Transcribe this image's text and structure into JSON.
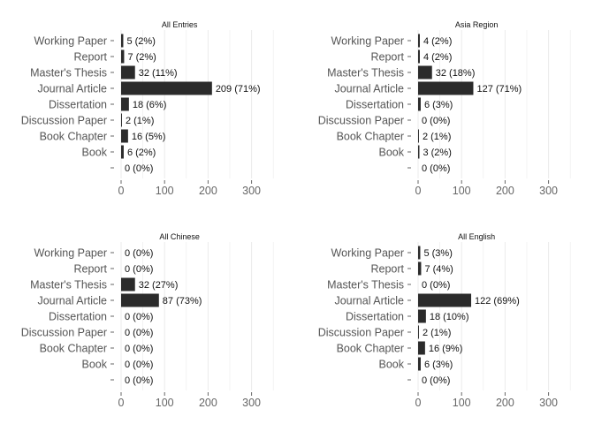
{
  "chart_data": [
    {
      "type": "bar",
      "orientation": "horizontal",
      "title": "All Entries",
      "categories": [
        "Working Paper",
        "Report",
        "Master's Thesis",
        "Journal Article",
        "Dissertation",
        "Discussion Paper",
        "Book Chapter",
        "Book",
        ""
      ],
      "values": [
        5,
        7,
        32,
        209,
        18,
        2,
        16,
        6,
        0
      ],
      "labels": [
        "5 (2%)",
        "7 (2%)",
        "32 (11%)",
        "209 (71%)",
        "18 (6%)",
        "2 (1%)",
        "16 (5%)",
        "6 (2%)",
        "0 (0%)"
      ],
      "xlim": [
        0,
        350
      ],
      "xticks": [
        0,
        100,
        200,
        300
      ],
      "grid": true,
      "bar_color": "#2b2b2b"
    },
    {
      "type": "bar",
      "orientation": "horizontal",
      "title": "Asia Region",
      "categories": [
        "Working Paper",
        "Report",
        "Master's Thesis",
        "Journal Article",
        "Dissertation",
        "Discussion Paper",
        "Book Chapter",
        "Book",
        ""
      ],
      "values": [
        4,
        4,
        32,
        127,
        6,
        0,
        2,
        3,
        0
      ],
      "labels": [
        "4 (2%)",
        "4 (2%)",
        "32 (18%)",
        "127 (71%)",
        "6 (3%)",
        "0 (0%)",
        "2 (1%)",
        "3 (2%)",
        "0 (0%)"
      ],
      "xlim": [
        0,
        350
      ],
      "xticks": [
        0,
        100,
        200,
        300
      ],
      "grid": true,
      "bar_color": "#2b2b2b"
    },
    {
      "type": "bar",
      "orientation": "horizontal",
      "title": "All Chinese",
      "categories": [
        "Working Paper",
        "Report",
        "Master's Thesis",
        "Journal Article",
        "Dissertation",
        "Discussion Paper",
        "Book Chapter",
        "Book",
        ""
      ],
      "values": [
        0,
        0,
        32,
        87,
        0,
        0,
        0,
        0,
        0
      ],
      "labels": [
        "0 (0%)",
        "0 (0%)",
        "32 (27%)",
        "87 (73%)",
        "0 (0%)",
        "0 (0%)",
        "0 (0%)",
        "0 (0%)",
        "0 (0%)"
      ],
      "xlim": [
        0,
        350
      ],
      "xticks": [
        0,
        100,
        200,
        300
      ],
      "grid": true,
      "bar_color": "#2b2b2b"
    },
    {
      "type": "bar",
      "orientation": "horizontal",
      "title": "All English",
      "categories": [
        "Working Paper",
        "Report",
        "Master's Thesis",
        "Journal Article",
        "Dissertation",
        "Discussion Paper",
        "Book Chapter",
        "Book",
        ""
      ],
      "values": [
        5,
        7,
        0,
        122,
        18,
        2,
        16,
        6,
        0
      ],
      "labels": [
        "5 (3%)",
        "7 (4%)",
        "0 (0%)",
        "122 (69%)",
        "18 (10%)",
        "2 (1%)",
        "16 (9%)",
        "6 (3%)",
        "0 (0%)"
      ],
      "xlim": [
        0,
        350
      ],
      "xticks": [
        0,
        100,
        200,
        300
      ],
      "grid": true,
      "bar_color": "#2b2b2b"
    }
  ]
}
